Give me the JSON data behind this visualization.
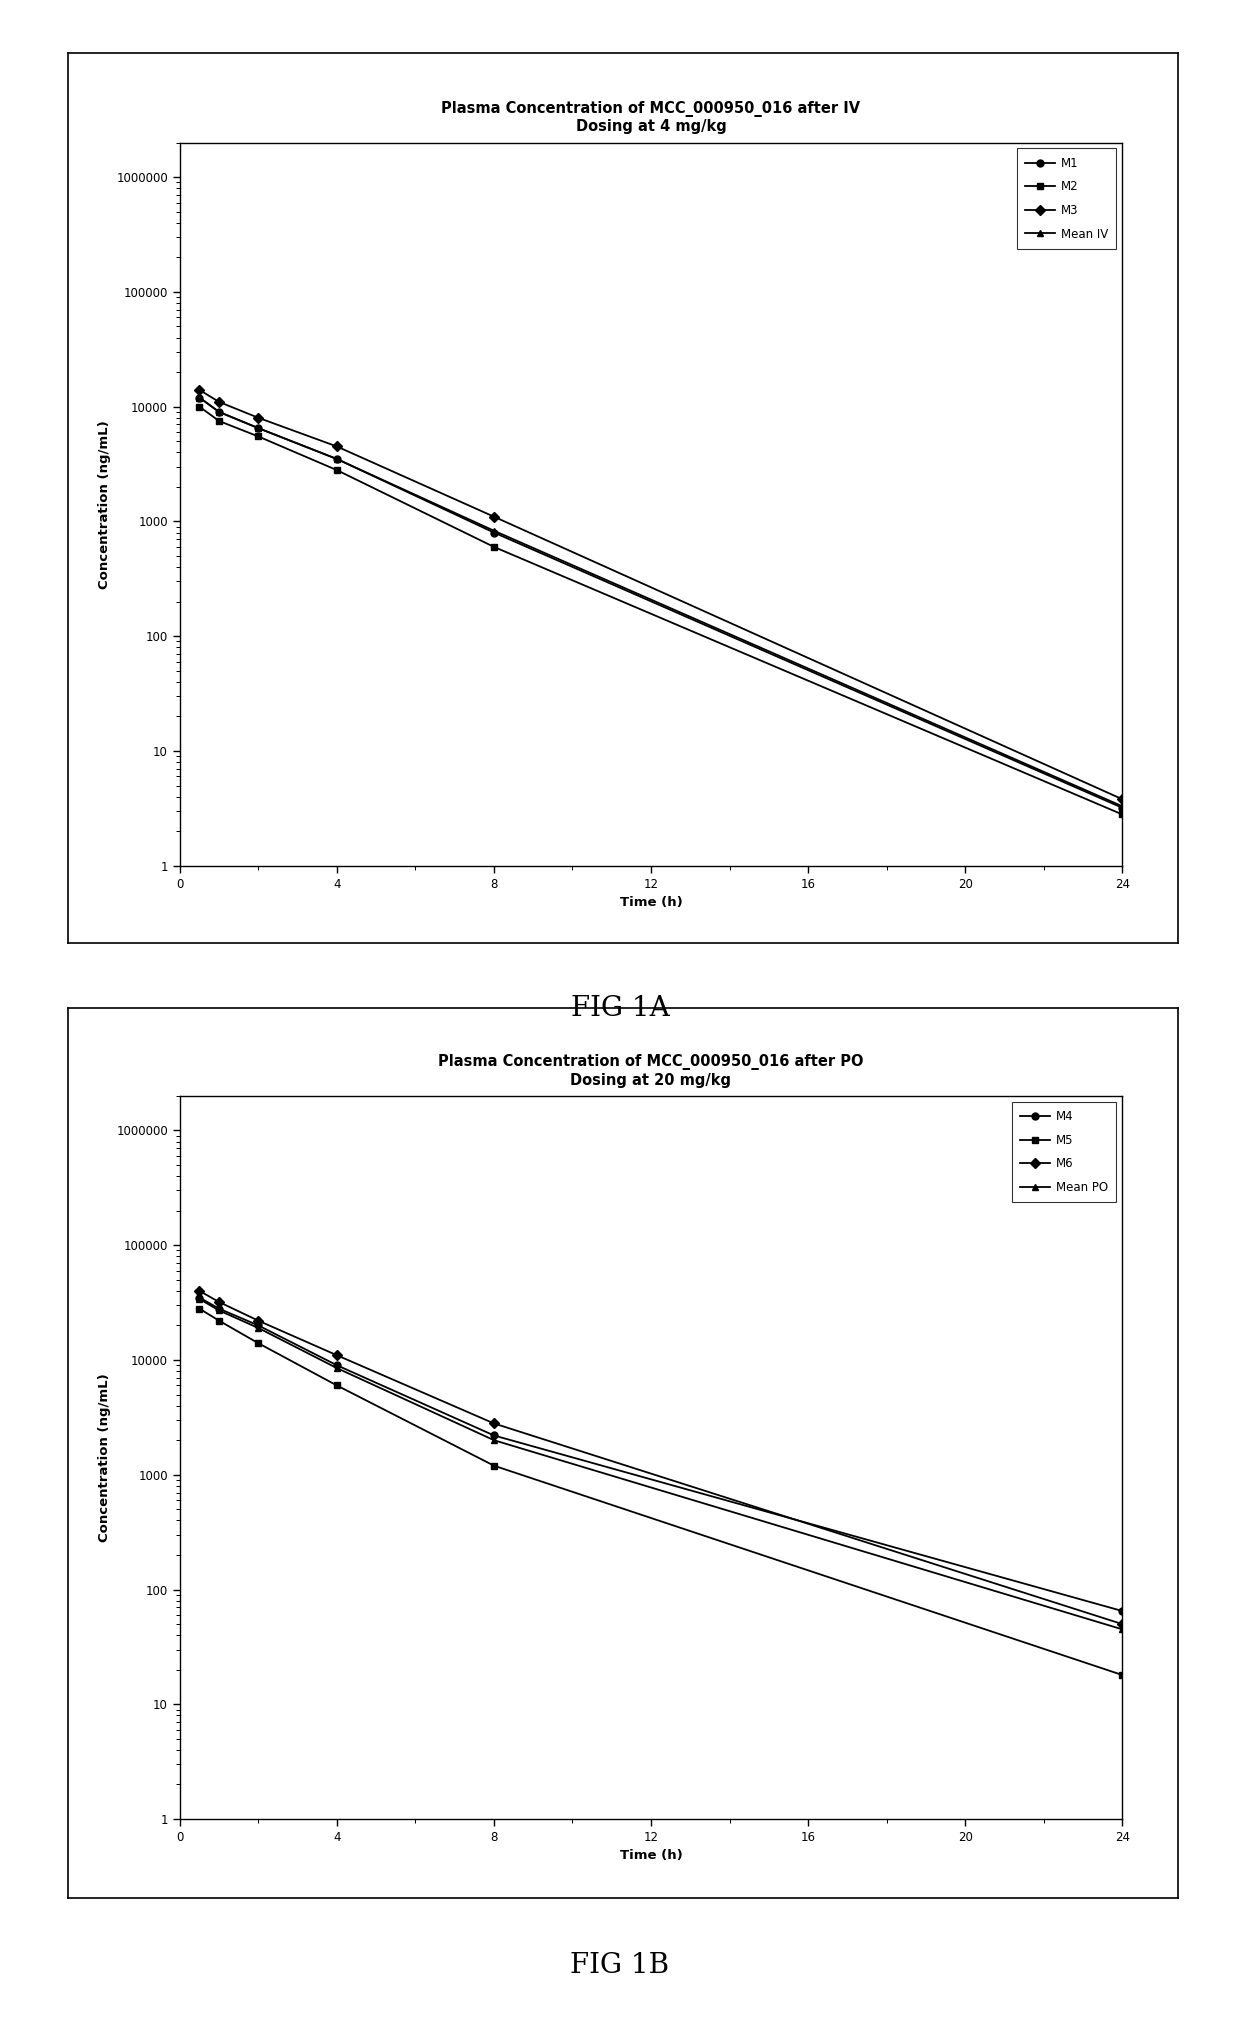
{
  "fig1a": {
    "title": "Plasma Concentration of MCC_000950_016 after IV\nDosing at 4 mg/kg",
    "xlabel": "Time (h)",
    "ylabel": "Concentration (ng/mL)",
    "xlim": [
      0,
      24
    ],
    "ylim": [
      1,
      2000000
    ],
    "xticks": [
      0,
      4,
      8,
      12,
      16,
      20,
      24
    ],
    "yticks": [
      1,
      10,
      100,
      1000,
      10000,
      100000,
      1000000
    ],
    "series": {
      "M1": {
        "x": [
          0.5,
          1,
          2,
          4,
          8,
          24
        ],
        "y": [
          12000,
          9000,
          6500,
          3500,
          800,
          3.2
        ],
        "marker": "o",
        "color": "#000000"
      },
      "M2": {
        "x": [
          0.5,
          1,
          2,
          4,
          8,
          24
        ],
        "y": [
          10000,
          7500,
          5500,
          2800,
          600,
          2.8
        ],
        "marker": "s",
        "color": "#000000"
      },
      "M3": {
        "x": [
          0.5,
          1,
          2,
          4,
          8,
          24
        ],
        "y": [
          14000,
          11000,
          8000,
          4500,
          1100,
          3.8
        ],
        "marker": "D",
        "color": "#000000"
      },
      "Mean IV": {
        "x": [
          0.5,
          1,
          2,
          4,
          8,
          24
        ],
        "y": [
          12000,
          9000,
          6500,
          3500,
          830,
          3.3
        ],
        "marker": "^",
        "color": "#000000"
      }
    }
  },
  "fig1b": {
    "title": "Plasma Concentration of MCC_000950_016 after PO\nDosing at 20 mg/kg",
    "xlabel": "Time (h)",
    "ylabel": "Concentration (ng/mL)",
    "xlim": [
      0,
      24
    ],
    "ylim": [
      1,
      2000000
    ],
    "xticks": [
      0,
      4,
      8,
      12,
      16,
      20,
      24
    ],
    "yticks": [
      1,
      10,
      100,
      1000,
      10000,
      100000,
      1000000
    ],
    "series": {
      "M4": {
        "x": [
          0.5,
          1,
          2,
          4,
          8,
          24
        ],
        "y": [
          35000,
          28000,
          20000,
          9000,
          2200,
          65
        ],
        "marker": "o",
        "color": "#000000"
      },
      "M5": {
        "x": [
          0.5,
          1,
          2,
          4,
          8,
          24
        ],
        "y": [
          28000,
          22000,
          14000,
          6000,
          1200,
          18
        ],
        "marker": "s",
        "color": "#000000"
      },
      "M6": {
        "x": [
          0.5,
          1,
          2,
          4,
          8,
          24
        ],
        "y": [
          40000,
          32000,
          22000,
          11000,
          2800,
          50
        ],
        "marker": "D",
        "color": "#000000"
      },
      "Mean PO": {
        "x": [
          0.5,
          1,
          2,
          4,
          8,
          24
        ],
        "y": [
          34000,
          27000,
          19000,
          8500,
          2000,
          45
        ],
        "marker": "^",
        "color": "#000000"
      }
    }
  },
  "fig1a_caption": "FIG 1A",
  "fig1b_caption": "FIG 1B",
  "background_color": "#ffffff",
  "line_color": "#000000",
  "title_fontsize": 10.5,
  "label_fontsize": 9.5,
  "tick_fontsize": 8.5,
  "legend_fontsize": 8.5,
  "caption_fontsize": 20,
  "page_bg": "#ffffff"
}
